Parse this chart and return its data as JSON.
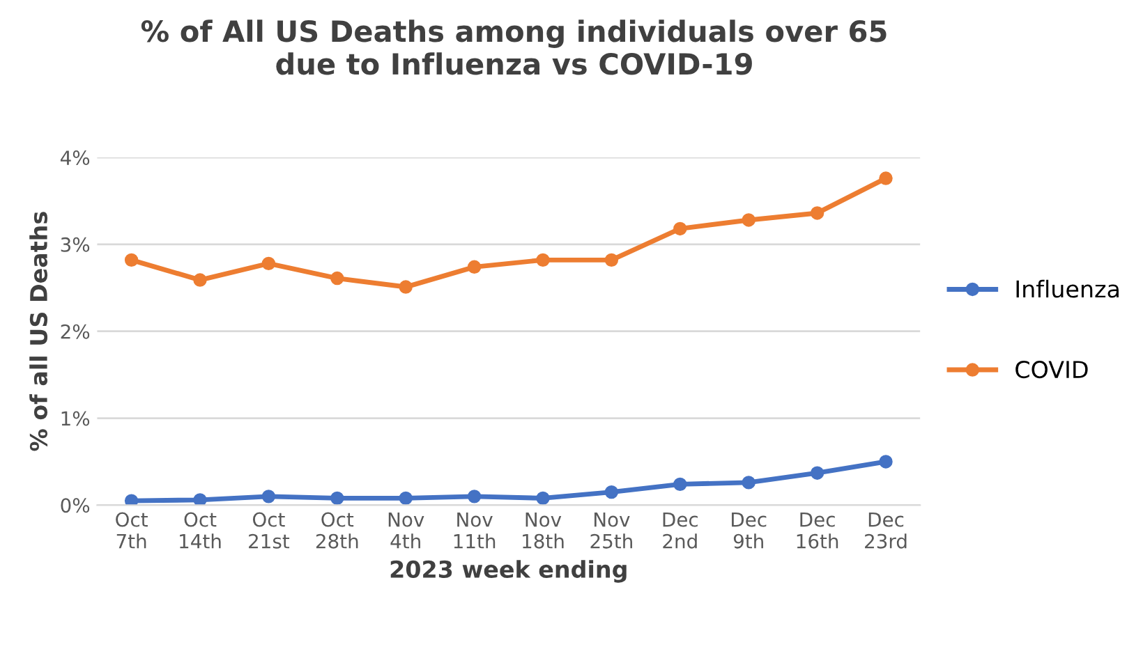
{
  "chart_data": {
    "type": "line",
    "title": "% of All US Deaths among individuals over 65\ndue to Influenza vs COVID-19",
    "xlabel": "2023 week ending",
    "ylabel": "% of all US Deaths",
    "categories": [
      "Oct\n7th",
      "Oct\n14th",
      "Oct\n21st",
      "Oct\n28th",
      "Nov\n4th",
      "Nov\n11th",
      "Nov\n18th",
      "Nov\n25th",
      "Dec\n2nd",
      "Dec\n9th",
      "Dec\n16th",
      "Dec\n23rd"
    ],
    "series": [
      {
        "name": "Influenza",
        "color": "#4472c4",
        "values": [
          0.05,
          0.06,
          0.1,
          0.08,
          0.08,
          0.1,
          0.08,
          0.15,
          0.24,
          0.26,
          0.37,
          0.5
        ]
      },
      {
        "name": "COVID",
        "color": "#ed7d31",
        "values": [
          2.82,
          2.59,
          2.78,
          2.61,
          2.51,
          2.74,
          2.82,
          2.82,
          3.18,
          3.28,
          3.36,
          3.76
        ]
      }
    ],
    "ylim": [
      0,
      4
    ],
    "yticks": [
      {
        "value": 0,
        "label": "0%"
      },
      {
        "value": 1,
        "label": "1%"
      },
      {
        "value": 2,
        "label": "2%"
      },
      {
        "value": 3,
        "label": "3%"
      },
      {
        "value": 4,
        "label": "4%"
      }
    ],
    "grid": "y",
    "legend": "right",
    "marker": "circle",
    "line_style": "solid"
  }
}
